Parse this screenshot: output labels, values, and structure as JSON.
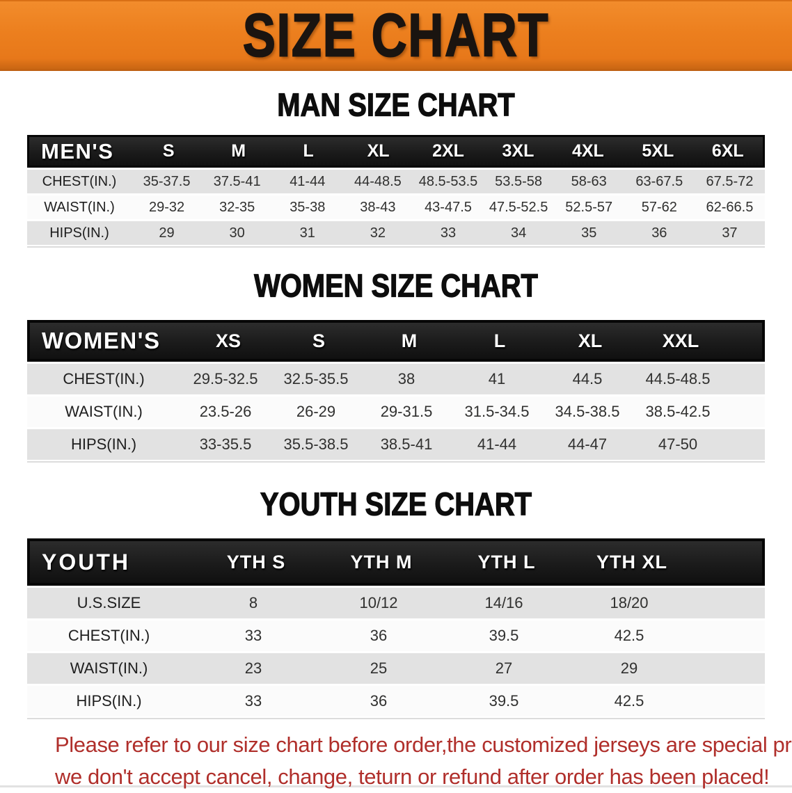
{
  "banner": {
    "title": "SIZE CHART"
  },
  "colors": {
    "banner_bg": "#EC7F1E",
    "banner_text": "#1A1410",
    "header_row_bg": "#1B1B1B",
    "row_gray": "#E2E2E2",
    "row_white": "#FBFBFB",
    "footer_text": "#B02F2B"
  },
  "sections": [
    {
      "heading": "MAN SIZE CHART",
      "table": {
        "header": [
          "MEN'S",
          "S",
          "M",
          "L",
          "XL",
          "2XL",
          "3XL",
          "4XL",
          "5XL",
          "6XL"
        ],
        "rows": [
          {
            "label": "CHEST(IN.)",
            "values": [
              "35-37.5",
              "37.5-41",
              "41-44",
              "44-48.5",
              "48.5-53.5",
              "53.5-58",
              "58-63",
              "63-67.5",
              "67.5-72"
            ]
          },
          {
            "label": "WAIST(IN.)",
            "values": [
              "29-32",
              "32-35",
              "35-38",
              "38-43",
              "43-47.5",
              "47.5-52.5",
              "52.5-57",
              "57-62",
              "62-66.5"
            ]
          },
          {
            "label": "HIPS(IN.)",
            "values": [
              "29",
              "30",
              "31",
              "32",
              "33",
              "34",
              "35",
              "36",
              "37"
            ]
          }
        ]
      }
    },
    {
      "heading": "WOMEN SIZE CHART",
      "table": {
        "header": [
          "WOMEN'S",
          "XS",
          "S",
          "M",
          "L",
          "XL",
          "XXL"
        ],
        "rows": [
          {
            "label": "CHEST(IN.)",
            "values": [
              "29.5-32.5",
              "32.5-35.5",
              "38",
              "41",
              "44.5",
              "44.5-48.5"
            ]
          },
          {
            "label": "WAIST(IN.)",
            "values": [
              "23.5-26",
              "26-29",
              "29-31.5",
              "31.5-34.5",
              "34.5-38.5",
              "38.5-42.5"
            ]
          },
          {
            "label": "HIPS(IN.)",
            "values": [
              "33-35.5",
              "35.5-38.5",
              "38.5-41",
              "41-44",
              "44-47",
              "47-50"
            ]
          }
        ]
      }
    },
    {
      "heading": "YOUTH SIZE CHART",
      "table": {
        "header": [
          "YOUTH",
          "YTH S",
          "YTH M",
          "YTH L",
          "YTH XL"
        ],
        "rows": [
          {
            "label": "U.S.SIZE",
            "values": [
              "8",
              "10/12",
              "14/16",
              "18/20"
            ]
          },
          {
            "label": "CHEST(IN.)",
            "values": [
              "33",
              "36",
              "39.5",
              "42.5"
            ]
          },
          {
            "label": "WAIST(IN.)",
            "values": [
              "23",
              "25",
              "27",
              "29"
            ]
          },
          {
            "label": "HIPS(IN.)",
            "values": [
              "33",
              "36",
              "39.5",
              "42.5"
            ]
          }
        ]
      }
    }
  ],
  "footer": {
    "line1": "Please refer to our size chart before order,the customized jerseys are special products,",
    "line2": "we don't accept cancel, change, teturn or refund after order has been placed!"
  }
}
